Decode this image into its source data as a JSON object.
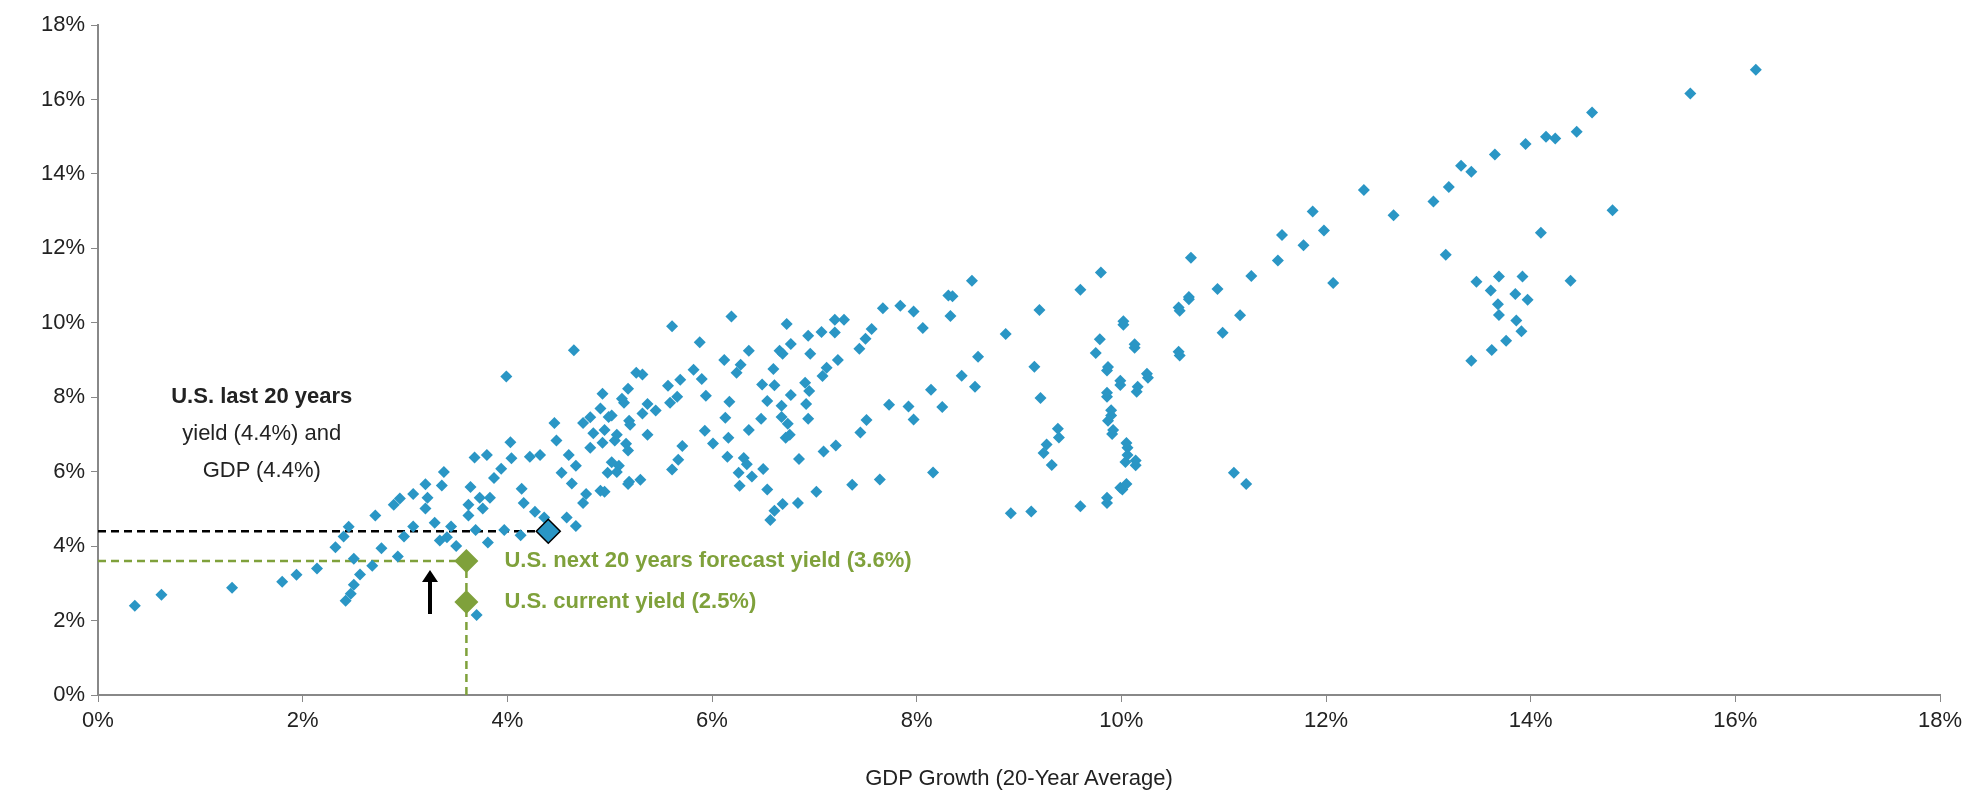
{
  "chart_data": {
    "type": "scatter",
    "xlabel": "GDP Growth (20-Year Average)",
    "marker": "diamond",
    "legend": false,
    "grid": false,
    "xlim": [
      0,
      18
    ],
    "ylim": [
      0,
      18
    ],
    "xticks": [
      {
        "value": 0,
        "label": "0%"
      },
      {
        "value": 2,
        "label": "2%"
      },
      {
        "value": 4,
        "label": "4%"
      },
      {
        "value": 6,
        "label": "6%"
      },
      {
        "value": 8,
        "label": "8%"
      },
      {
        "value": 10,
        "label": "10%"
      },
      {
        "value": 12,
        "label": "12%"
      },
      {
        "value": 14,
        "label": "14%"
      },
      {
        "value": 16,
        "label": "16%"
      },
      {
        "value": 18,
        "label": "18%"
      }
    ],
    "yticks": [
      {
        "value": 0,
        "label": "0%"
      },
      {
        "value": 2,
        "label": "2%"
      },
      {
        "value": 4,
        "label": "4%"
      },
      {
        "value": 6,
        "label": "6%"
      },
      {
        "value": 8,
        "label": "8%"
      },
      {
        "value": 10,
        "label": "10%"
      },
      {
        "value": 12,
        "label": "12%"
      },
      {
        "value": 14,
        "label": "14%"
      },
      {
        "value": 16,
        "label": "16%"
      },
      {
        "value": 18,
        "label": "18%"
      }
    ],
    "series": [
      {
        "color": "#2a96c5",
        "x": [
          16.2,
          15.56,
          14.6,
          14.45,
          14.24,
          14.15,
          13.95,
          13.65,
          13.42,
          13.32,
          13.2,
          13.05,
          12.66,
          12.37,
          14.8,
          11.87,
          11.98,
          11.57,
          11.78,
          11.53,
          11.27,
          12.07,
          10.94,
          10.68,
          10.66,
          10.57,
          11.16,
          10.99,
          10.57,
          10.02,
          10.13,
          10.26,
          9.86,
          9.99,
          9.86,
          10.15,
          9.9,
          9.91,
          10.06,
          10.14,
          10.04,
          10.01,
          9.86,
          11.1,
          11.22,
          14.1,
          13.17,
          14.39,
          13.47,
          13.69,
          13.92,
          13.61,
          13.85,
          13.97,
          13.68,
          13.69,
          13.86,
          13.91,
          13.76,
          13.62,
          13.42,
          9.8,
          8.54,
          8.31,
          8.35,
          8.33,
          7.84,
          7.67,
          7.97,
          8.06,
          7.56,
          7.5,
          7.44,
          7.29,
          7.2,
          7.2,
          7.07,
          6.94,
          6.73,
          6.77,
          6.66,
          6.69,
          6.96,
          6.19,
          5.61,
          5.88,
          6.36,
          6.12,
          6.28,
          6.24,
          6.6,
          7.23,
          7.12,
          7.08,
          6.91,
          6.95,
          6.49,
          6.61,
          6.77,
          6.54,
          6.68,
          6.92,
          6.68,
          6.94,
          6.48,
          6.74,
          6.36,
          6.72,
          6.76,
          6.17,
          6.13,
          6.16,
          5.82,
          5.9,
          5.94,
          5.69,
          5.57,
          5.93,
          6.01,
          5.71,
          5.67,
          5.61,
          6.15,
          6.31,
          6.34,
          6.26,
          6.39,
          6.5,
          6.27,
          6.54,
          6.69,
          6.61,
          6.57,
          6.84,
          7.02,
          6.85,
          7.09,
          7.21,
          7.37,
          7.64,
          7.45,
          7.51,
          7.73,
          7.92,
          7.97,
          8.14,
          8.25,
          8.16,
          8.44,
          8.6,
          8.57,
          8.87,
          9.2,
          9.15,
          9.21,
          9.38,
          9.39,
          9.27,
          9.24,
          9.32,
          8.92,
          9.12,
          9.6,
          9.86,
          9.99,
          10.05,
          9.6,
          9.79,
          10.02,
          9.75,
          9.87,
          10.13,
          9.99,
          9.86,
          10.25,
          10.16,
          9.9,
          9.87,
          9.92,
          10.05,
          10.06,
          10.14,
          10.56,
          10.66,
          10.56,
          0.36,
          0.62,
          1.31,
          1.8,
          1.94,
          2.14,
          2.42,
          2.47,
          2.5,
          2.56,
          2.68,
          2.5,
          2.32,
          2.4,
          2.45,
          2.77,
          2.93,
          2.71,
          2.99,
          3.08,
          2.89,
          2.95,
          3.08,
          3.2,
          3.36,
          3.38,
          3.22,
          3.2,
          3.29,
          3.34,
          3.41,
          3.5,
          3.45,
          3.62,
          3.69,
          3.81,
          3.7,
          3.97,
          4.13,
          4.03,
          3.99,
          4.65,
          3.68,
          3.8,
          3.64,
          3.73,
          3.62,
          3.76,
          3.83,
          3.87,
          3.94,
          4.14,
          4.16,
          4.04,
          4.22,
          4.32,
          4.46,
          4.48,
          4.27,
          4.36,
          4.58,
          4.67,
          4.74,
          4.63,
          4.77,
          4.93,
          4.91,
          5.02,
          5.18,
          5.26,
          5.32,
          5.14,
          5.19,
          5.05,
          5.16,
          5.09,
          4.98,
          5.19,
          4.91,
          4.81,
          4.84,
          4.6,
          4.67,
          4.74,
          4.81,
          4.95,
          4.53,
          5.12,
          5.37,
          4.99,
          5.2,
          5.32,
          5.45,
          5.59,
          5.66,
          5.37,
          5.07,
          5.18,
          5.02,
          5.07,
          5.3,
          5.18,
          4.95,
          4.93
        ],
        "values": [
          16.8,
          16.16,
          15.65,
          15.13,
          14.95,
          15.0,
          14.8,
          14.52,
          14.06,
          14.22,
          13.65,
          13.26,
          12.89,
          13.57,
          13.02,
          12.99,
          12.48,
          12.36,
          12.08,
          11.67,
          11.26,
          11.07,
          10.91,
          11.75,
          10.63,
          10.32,
          10.2,
          9.73,
          9.12,
          9.95,
          9.33,
          8.52,
          8.72,
          8.33,
          8.01,
          8.15,
          7.51,
          7.01,
          6.64,
          6.17,
          6.26,
          5.52,
          5.16,
          5.97,
          5.67,
          12.42,
          11.83,
          11.13,
          11.1,
          11.24,
          11.24,
          10.87,
          10.77,
          10.62,
          10.5,
          10.21,
          10.06,
          9.77,
          9.52,
          9.27,
          8.98,
          11.35,
          11.13,
          10.73,
          10.71,
          10.18,
          10.46,
          10.39,
          10.3,
          9.86,
          9.83,
          9.57,
          9.3,
          10.08,
          10.08,
          9.74,
          9.75,
          9.65,
          9.97,
          9.43,
          9.25,
          9.17,
          9.17,
          10.17,
          9.91,
          9.48,
          9.25,
          9.0,
          8.87,
          8.66,
          8.76,
          9.0,
          8.79,
          8.57,
          8.39,
          8.17,
          8.34,
          8.32,
          8.06,
          7.9,
          7.77,
          7.82,
          7.47,
          7.42,
          7.42,
          7.29,
          7.12,
          6.91,
          6.99,
          7.88,
          7.45,
          6.91,
          8.74,
          8.49,
          8.04,
          8.47,
          8.31,
          7.1,
          6.76,
          6.69,
          6.32,
          6.06,
          6.4,
          6.37,
          6.2,
          5.97,
          5.87,
          6.07,
          5.62,
          5.52,
          5.13,
          4.95,
          4.7,
          5.16,
          5.46,
          6.34,
          6.54,
          6.7,
          5.65,
          5.79,
          7.05,
          7.39,
          7.8,
          7.75,
          7.4,
          8.2,
          7.74,
          5.98,
          8.58,
          9.09,
          8.28,
          9.7,
          10.34,
          8.82,
          7.98,
          7.15,
          6.92,
          6.73,
          6.5,
          6.18,
          4.88,
          4.93,
          5.07,
          5.3,
          5.57,
          5.67,
          10.89,
          9.56,
          10.04,
          9.19,
          8.81,
          9.42,
          8.44,
          8.12,
          8.63,
          8.28,
          7.65,
          7.37,
          7.12,
          6.77,
          6.45,
          6.3,
          10.41,
          10.69,
          9.22,
          2.4,
          2.69,
          2.88,
          3.04,
          3.23,
          3.4,
          2.53,
          2.72,
          2.96,
          3.24,
          3.47,
          3.66,
          3.97,
          4.26,
          4.52,
          3.94,
          3.72,
          4.82,
          4.26,
          4.53,
          5.11,
          5.28,
          5.4,
          5.66,
          5.63,
          5.99,
          5.3,
          5.01,
          4.63,
          4.15,
          4.24,
          4.0,
          4.53,
          4.82,
          4.43,
          4.1,
          2.15,
          4.43,
          4.29,
          6.79,
          8.56,
          9.26,
          6.38,
          6.45,
          5.59,
          5.3,
          5.11,
          5.01,
          5.3,
          5.83,
          6.08,
          5.54,
          5.16,
          6.36,
          6.4,
          6.45,
          7.31,
          6.84,
          4.92,
          4.77,
          4.77,
          4.54,
          5.16,
          5.68,
          5.4,
          8.09,
          7.7,
          7.51,
          8.23,
          8.66,
          8.61,
          7.85,
          7.37,
          6.84,
          6.75,
          6.16,
          5.97,
          5.73,
          5.49,
          6.64,
          7.03,
          6.45,
          6.16,
          7.31,
          7.46,
          7.12,
          5.97,
          7.96,
          7.82,
          7.47,
          7.26,
          7.56,
          7.64,
          7.85,
          8.01,
          6.99,
          6.99,
          6.57,
          6.25,
          5.99,
          5.78,
          5.67,
          5.46,
          6.78
        ]
      },
      {
        "color": "#2a96c5",
        "x": [
          4.4
        ],
        "values": [
          4.4
        ]
      },
      {
        "color": "#7fa13b",
        "x": [
          3.6,
          3.6
        ],
        "values": [
          3.6,
          2.5
        ]
      }
    ],
    "ref_lines": [
      {
        "axis": "y",
        "value": 4.4,
        "color": "#000000",
        "line_style": "dashed"
      },
      {
        "axis": "y",
        "value": 3.6,
        "color": "#7fa13b",
        "line_style": "dashed"
      },
      {
        "axis": "x",
        "value": 3.6,
        "color": "#7fa13b",
        "line_style": "dashed"
      }
    ],
    "annotations": [
      "U.S. last 20 years\nyield (4.4%) and\nGDP (4.4%)",
      {
        "text": "U.S. next 20 years forecast yield (3.6%)",
        "x": 3.6,
        "y": 3.6
      },
      {
        "text": "U.S. current yield (2.5%)",
        "x": 3.6,
        "y": 2.5
      }
    ]
  }
}
